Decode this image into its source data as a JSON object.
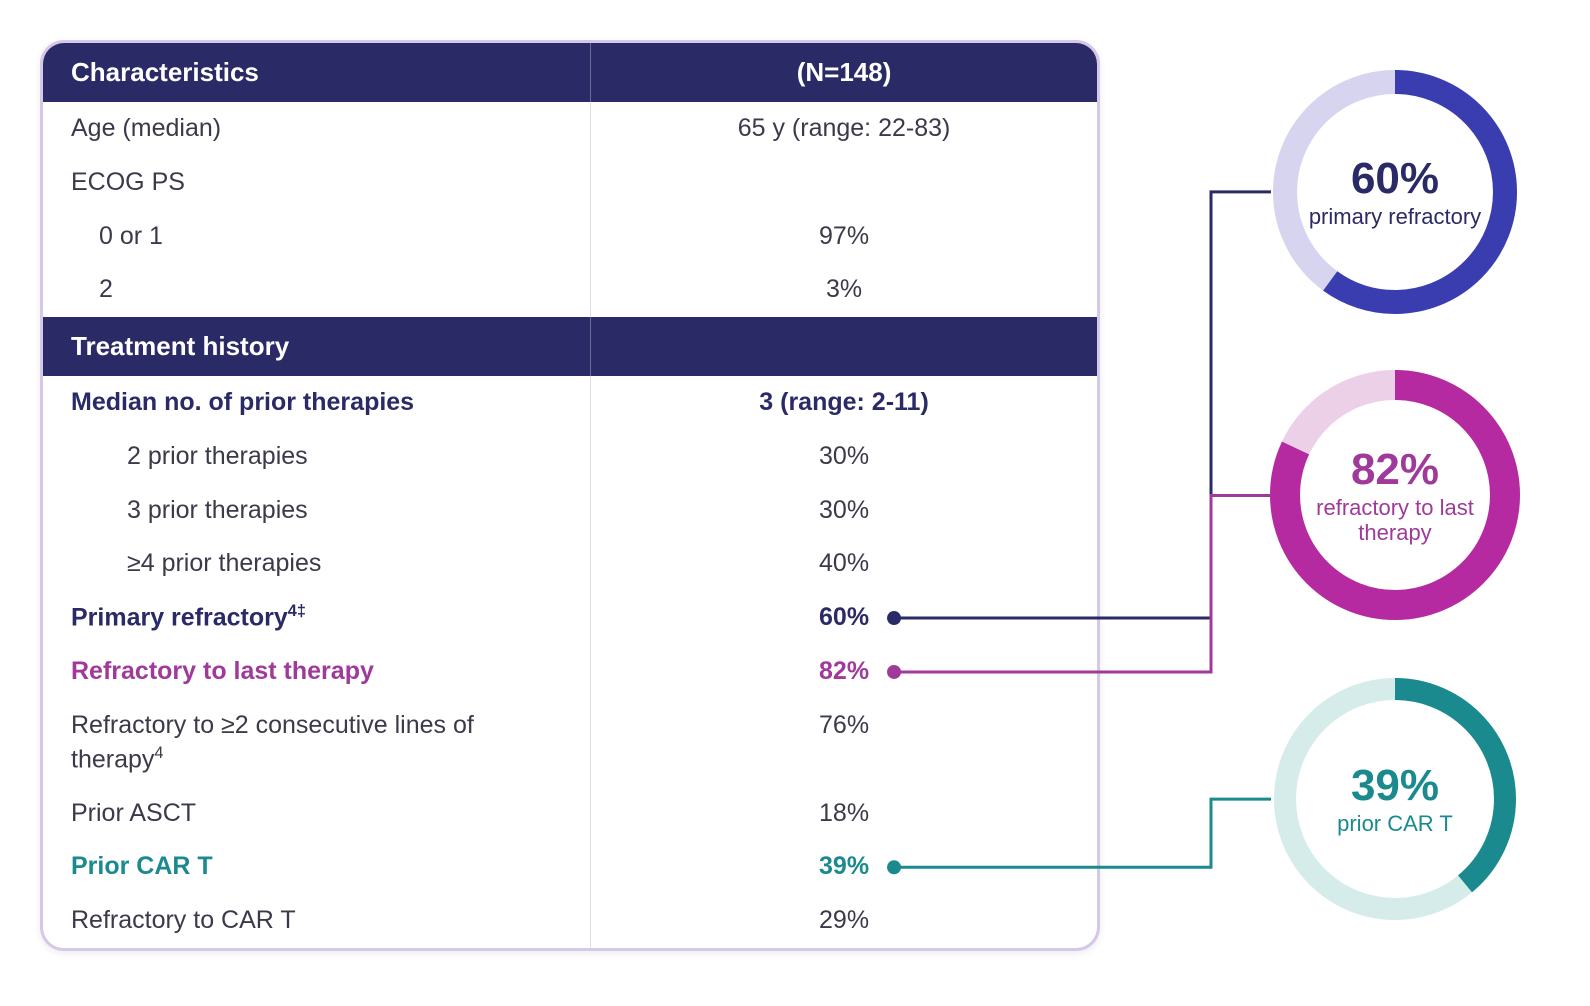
{
  "table": {
    "header": {
      "left": "Characteristics",
      "right": "(N=148)"
    },
    "rows_top": [
      {
        "label": "Age (median)",
        "value": "65 y (range: 22-83)",
        "indent": 0
      },
      {
        "label": "ECOG PS",
        "value": "",
        "indent": 0
      },
      {
        "label": "0 or 1",
        "value": "97%",
        "indent": 1
      },
      {
        "label": "2",
        "value": "3%",
        "indent": 1
      }
    ],
    "section2_header": "Treatment history",
    "rows_bottom": [
      {
        "label": "Median no. of prior therapies",
        "value": "3 (range: 2-11)",
        "indent": 0,
        "bold": true,
        "color": "#2a2a66"
      },
      {
        "label": "2 prior therapies",
        "value": "30%",
        "indent": 2
      },
      {
        "label": "3 prior therapies",
        "value": "30%",
        "indent": 2
      },
      {
        "label": "≥4 prior therapies",
        "value": "40%",
        "indent": 2
      },
      {
        "label": "Primary refractory",
        "sup": "4‡",
        "value": "60%",
        "indent": 0,
        "bold": true,
        "color": "#2a2a66",
        "dot": true
      },
      {
        "label": "Refractory to last therapy",
        "value": "82%",
        "indent": 0,
        "bold": true,
        "color": "#a03a9a",
        "dot": true
      },
      {
        "label": "Refractory to ≥2 consecutive lines of therapy",
        "sup": "4",
        "value": "76%",
        "indent": 0
      },
      {
        "label": "Prior ASCT",
        "value": "18%",
        "indent": 0
      },
      {
        "label": "Prior CAR T",
        "value": "39%",
        "indent": 0,
        "bold": true,
        "color": "#1b8a8f",
        "dot": true
      },
      {
        "label": "Refractory to CAR T",
        "value": "29%",
        "indent": 0
      }
    ]
  },
  "donuts": [
    {
      "pct": 60,
      "pct_label": "60%",
      "caption": "primary refractory",
      "color": "#3a3db0",
      "track": "#d6d4ee",
      "text_color": "#2a2a66",
      "ring_width": 24
    },
    {
      "pct": 82,
      "pct_label": "82%",
      "caption": "refractory to last therapy",
      "color": "#b52aa0",
      "track": "#ecd0e8",
      "text_color": "#a03a9a",
      "ring_width": 30
    },
    {
      "pct": 39,
      "pct_label": "39%",
      "caption": "prior CAR T",
      "color": "#1b8a8f",
      "track": "#d5eceb",
      "text_color": "#1b8a8f",
      "ring_width": 22
    }
  ],
  "connectors": {
    "stroke_width": 3,
    "dot_radius": 7
  },
  "layout": {
    "svg_size": 260,
    "donut_radius": 110
  }
}
